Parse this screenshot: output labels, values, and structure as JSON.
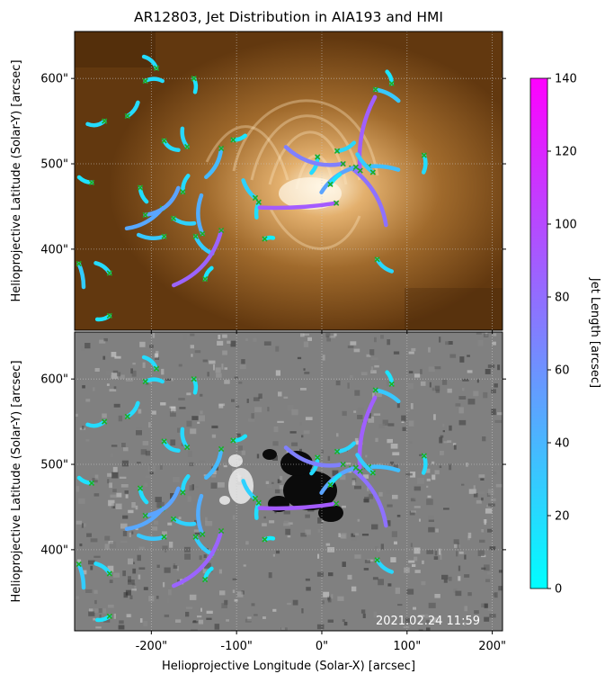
{
  "chart_data": {
    "type": "scatter",
    "title": "AR12803, Jet Distribution in AIA193 and HMI",
    "panels": [
      {
        "name": "AIA193",
        "background": "euv-193"
      },
      {
        "name": "HMI",
        "background": "magnetogram"
      }
    ],
    "xlabel": "Helioprojective Longitude (Solar-X) [arcsec]",
    "ylabel": "Helioprojective Latitude (Solar-Y) [arcsec]",
    "xlim": [
      -290,
      212
    ],
    "ylim": [
      305,
      655
    ],
    "x_ticks": [
      "-200\"",
      "-100\"",
      "0\"",
      "100\"",
      "200\""
    ],
    "x_tick_values": [
      -200,
      -100,
      0,
      100,
      200
    ],
    "y_ticks": [
      "400\"",
      "500\"",
      "600\""
    ],
    "y_tick_values": [
      400,
      500,
      600
    ],
    "timestamp": "2021.02.24 11:59",
    "colorbar": {
      "label": "Jet Length [arcsec]",
      "min": 0,
      "max": 140,
      "ticks": [
        "0",
        "20",
        "40",
        "60",
        "80",
        "100",
        "120",
        "140"
      ],
      "tick_values": [
        0,
        20,
        40,
        60,
        80,
        100,
        120,
        140
      ],
      "color_low": "#00ffff",
      "color_high": "#ff00ff"
    },
    "marker": {
      "symbol": "x",
      "color": "#22aa22"
    },
    "jets": [
      {
        "base": [
          -207,
          597
        ],
        "len": 20,
        "bend": 0.25
      },
      {
        "base": [
          -194,
          612
        ],
        "len": 20,
        "bend": -0.25
      },
      {
        "base": [
          -150,
          600
        ],
        "len": 16,
        "bend": 0.2
      },
      {
        "base": [
          -228,
          556
        ],
        "len": 20,
        "bend": -0.2
      },
      {
        "base": [
          -255,
          550
        ],
        "len": 20,
        "bend": 0.3
      },
      {
        "base": [
          -185,
          527
        ],
        "len": 20,
        "bend": -0.3
      },
      {
        "base": [
          -158,
          520
        ],
        "len": 22,
        "bend": 0.2
      },
      {
        "base": [
          -118,
          518
        ],
        "len": 38,
        "bend": 0.2
      },
      {
        "base": [
          -104,
          528
        ],
        "len": 15,
        "bend": -0.2
      },
      {
        "base": [
          -270,
          478
        ],
        "len": 16,
        "bend": 0.2
      },
      {
        "base": [
          -213,
          472
        ],
        "len": 18,
        "bend": -0.2
      },
      {
        "base": [
          -163,
          467
        ],
        "len": 20,
        "bend": 0.2
      },
      {
        "base": [
          -187,
          448
        ],
        "len": 48,
        "bend": 0.2
      },
      {
        "base": [
          -174,
          436
        ],
        "len": 25,
        "bend": -0.2
      },
      {
        "base": [
          -78,
          460
        ],
        "len": 25,
        "bend": 0.15
      },
      {
        "base": [
          -74,
          455
        ],
        "len": 18,
        "bend": -0.15
      },
      {
        "base": [
          -207,
          440
        ],
        "len": 50,
        "bend": -0.3
      },
      {
        "base": [
          -185,
          415
        ],
        "len": 30,
        "bend": 0.2
      },
      {
        "base": [
          -148,
          415
        ],
        "len": 28,
        "bend": -0.2
      },
      {
        "base": [
          -140,
          418
        ],
        "len": 45,
        "bend": 0.2
      },
      {
        "base": [
          -118,
          422
        ],
        "len": 85,
        "bend": 0.25
      },
      {
        "base": [
          -67,
          412
        ],
        "len": 10,
        "bend": 0.2
      },
      {
        "base": [
          -249,
          372
        ],
        "len": 20,
        "bend": -0.2
      },
      {
        "base": [
          -285,
          383
        ],
        "len": 28,
        "bend": 0.1
      },
      {
        "base": [
          -137,
          365
        ],
        "len": 15,
        "bend": 0.2
      },
      {
        "base": [
          -249,
          322
        ],
        "len": 15,
        "bend": 0.2
      },
      {
        "base": [
          63,
          587
        ],
        "len": 30,
        "bend": 0.15
      },
      {
        "base": [
          82,
          594
        ],
        "len": 15,
        "bend": -0.2
      },
      {
        "base": [
          -5,
          508
        ],
        "len": 20,
        "bend": 0.2
      },
      {
        "base": [
          18,
          515
        ],
        "len": 22,
        "bend": -0.2
      },
      {
        "base": [
          25,
          500
        ],
        "len": 70,
        "bend": 0.25
      },
      {
        "base": [
          35,
          495
        ],
        "len": 78,
        "bend": 0.2
      },
      {
        "base": [
          45,
          492
        ],
        "len": 88,
        "bend": 0.15
      },
      {
        "base": [
          40,
          496
        ],
        "len": 50,
        "bend": -0.2
      },
      {
        "base": [
          55,
          497
        ],
        "len": 35,
        "bend": 0.1
      },
      {
        "base": [
          60,
          490
        ],
        "len": 28,
        "bend": 0.1
      },
      {
        "base": [
          120,
          510
        ],
        "len": 20,
        "bend": 0.2
      },
      {
        "base": [
          10,
          476
        ],
        "len": 16,
        "bend": 0.1
      },
      {
        "base": [
          17,
          454
        ],
        "len": 90,
        "bend": 0.05
      },
      {
        "base": [
          65,
          388
        ],
        "len": 22,
        "bend": -0.2
      }
    ]
  }
}
